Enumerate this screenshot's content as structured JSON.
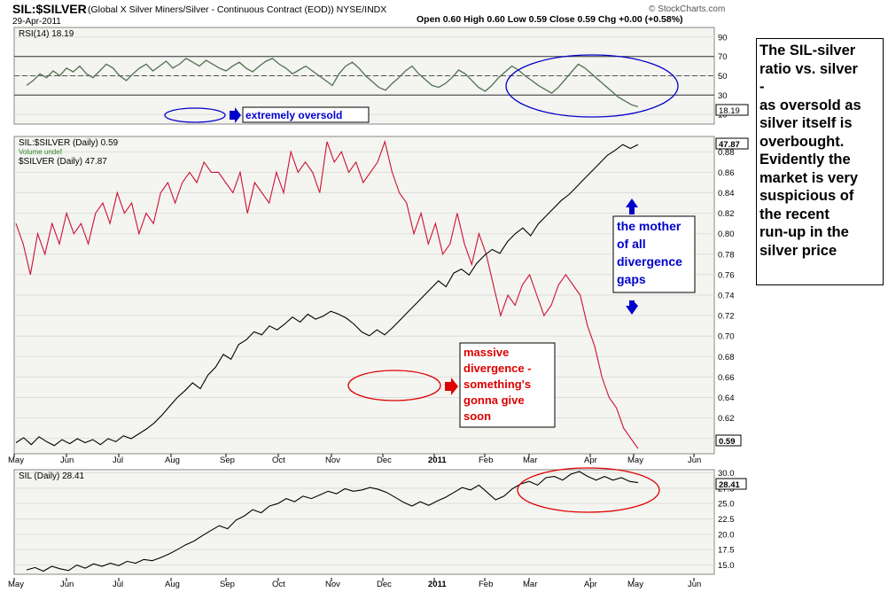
{
  "header": {
    "symbol": "SIL:$SILVER",
    "description": "(Global X Silver Miners/Silver - Continuous Contract (EOD)) NYSE/INDX",
    "date": "29-Apr-2011",
    "ohlc_label": "Open 0.60  High 0.60  Low 0.59  Close 0.59  Chg +0.00 (+0.58%)",
    "credit": "© StockCharts.com",
    "ohlc_arrow_color": "#00aa00"
  },
  "note": {
    "lines": [
      "The SIL-silver",
      "ratio vs. silver",
      "-",
      "as oversold as",
      "silver itself is",
      "overbought.",
      "Evidently the",
      "market  is very",
      "suspicious of",
      "the recent",
      "run-up in the",
      "silver price"
    ]
  },
  "annotations": {
    "oversold": "extremely oversold",
    "massive": [
      "massive",
      "divergence -",
      "something's",
      "gonna give",
      "soon"
    ],
    "mother": [
      "the mother",
      "of all",
      "divergence",
      "gaps"
    ]
  },
  "colors": {
    "panel_bg": "#f4f4f0",
    "ratio": "#cc1133",
    "silver": "#000000",
    "rsi": "#507050",
    "blue_annot": "#0000cc",
    "red_annot": "#dd0000",
    "price_label_bg": "#ffffff"
  },
  "chart_data": [
    {
      "type": "line",
      "panel": "rsi",
      "legend": "RSI(14) 18.19",
      "yticks": [
        10,
        30,
        50,
        70,
        90
      ],
      "ylim": [
        0,
        100
      ],
      "levels": [
        30,
        50,
        70
      ],
      "last_value": "18.19",
      "series": [
        {
          "name": "RSI(14)",
          "values": [
            40,
            45,
            52,
            48,
            55,
            50,
            58,
            54,
            60,
            52,
            48,
            55,
            62,
            58,
            50,
            45,
            52,
            58,
            62,
            55,
            60,
            65,
            58,
            62,
            68,
            64,
            60,
            66,
            62,
            58,
            55,
            60,
            64,
            58,
            54,
            60,
            65,
            68,
            62,
            58,
            52,
            56,
            60,
            55,
            50,
            45,
            40,
            52,
            60,
            64,
            58,
            50,
            44,
            38,
            35,
            42,
            48,
            55,
            60,
            52,
            46,
            40,
            38,
            42,
            48,
            56,
            52,
            45,
            38,
            34,
            40,
            48,
            54,
            60,
            56,
            50,
            45,
            40,
            36,
            32,
            38,
            46,
            54,
            62,
            58,
            52,
            46,
            40,
            34,
            28,
            24,
            20,
            18
          ]
        }
      ]
    },
    {
      "type": "line",
      "panel": "main",
      "legend": [
        "SIL:$SILVER (Daily) 0.59",
        "Volume undef",
        "$SILVER (Daily) 47.87"
      ],
      "xticks": [
        "May",
        "Jun",
        "Jul",
        "Aug",
        "Sep",
        "Oct",
        "Nov",
        "Dec",
        "2011",
        "Feb",
        "Mar",
        "Apr",
        "May",
        "Jun"
      ],
      "yticks": [
        "0.60",
        "0.62",
        "0.64",
        "0.66",
        "0.68",
        "0.70",
        "0.72",
        "0.74",
        "0.76",
        "0.78",
        "0.80",
        "0.82",
        "0.84",
        "0.86",
        "0.88"
      ],
      "ylim": [
        0.585,
        0.895
      ],
      "last_labels": {
        "ratio": "0.59",
        "silver": "47.87"
      },
      "series": [
        {
          "name": "SIL:$SILVER",
          "values": [
            0.81,
            0.79,
            0.76,
            0.8,
            0.78,
            0.81,
            0.79,
            0.82,
            0.8,
            0.81,
            0.79,
            0.82,
            0.83,
            0.81,
            0.84,
            0.82,
            0.83,
            0.8,
            0.82,
            0.81,
            0.84,
            0.85,
            0.83,
            0.85,
            0.86,
            0.85,
            0.87,
            0.86,
            0.86,
            0.85,
            0.84,
            0.86,
            0.82,
            0.85,
            0.84,
            0.83,
            0.86,
            0.84,
            0.88,
            0.86,
            0.87,
            0.86,
            0.84,
            0.89,
            0.87,
            0.88,
            0.86,
            0.87,
            0.85,
            0.86,
            0.87,
            0.89,
            0.86,
            0.84,
            0.83,
            0.8,
            0.82,
            0.79,
            0.81,
            0.78,
            0.79,
            0.82,
            0.79,
            0.77,
            0.8,
            0.78,
            0.75,
            0.72,
            0.74,
            0.73,
            0.75,
            0.76,
            0.74,
            0.72,
            0.73,
            0.75,
            0.76,
            0.75,
            0.74,
            0.71,
            0.69,
            0.66,
            0.64,
            0.63,
            0.61,
            0.6,
            0.59
          ]
        },
        {
          "name": "$SILVER",
          "values": [
            17.5,
            18.0,
            17.3,
            18.1,
            17.6,
            17.2,
            17.8,
            17.4,
            17.9,
            17.5,
            17.8,
            17.3,
            17.9,
            17.6,
            18.2,
            17.9,
            18.4,
            18.9,
            19.5,
            20.3,
            21.2,
            22.1,
            22.8,
            23.6,
            23.0,
            24.4,
            25.2,
            26.5,
            26.0,
            27.5,
            28.0,
            28.8,
            28.5,
            29.4,
            29.0,
            29.6,
            30.3,
            29.8,
            30.6,
            30.1,
            30.4,
            30.9,
            30.6,
            30.2,
            29.6,
            28.8,
            28.4,
            29.0,
            28.5,
            29.2,
            30.0,
            30.8,
            31.6,
            32.4,
            33.2,
            34.0,
            33.4,
            34.8,
            35.2,
            34.6,
            35.8,
            36.6,
            37.2,
            36.8,
            38.0,
            38.8,
            39.4,
            38.6,
            39.8,
            40.6,
            41.4,
            42.2,
            42.8,
            43.6,
            44.4,
            45.2,
            46.0,
            46.8,
            47.3,
            47.9,
            47.5,
            47.9
          ]
        }
      ]
    },
    {
      "type": "line",
      "panel": "sil",
      "legend": "SIL (Daily) 28.41",
      "xticks": [
        "May",
        "Jun",
        "Jul",
        "Aug",
        "Sep",
        "Oct",
        "Nov",
        "Dec",
        "2011",
        "Feb",
        "Mar",
        "Apr",
        "May",
        "Jun"
      ],
      "yticks": [
        "15.0",
        "17.5",
        "20.0",
        "22.5",
        "25.0",
        "27.5",
        "30.0"
      ],
      "ylim": [
        13.5,
        30.5
      ],
      "last_value": "28.41",
      "series": [
        {
          "name": "SIL",
          "values": [
            14.2,
            14.6,
            14.0,
            14.8,
            14.4,
            14.1,
            15.0,
            14.5,
            15.2,
            14.8,
            15.3,
            14.9,
            15.6,
            15.3,
            15.9,
            15.7,
            16.2,
            16.8,
            17.5,
            18.3,
            18.9,
            19.8,
            20.6,
            21.4,
            20.9,
            22.3,
            23.0,
            24.0,
            23.5,
            24.6,
            25.0,
            25.8,
            25.3,
            26.2,
            25.8,
            26.4,
            27.0,
            26.6,
            27.4,
            27.0,
            27.2,
            27.6,
            27.3,
            26.8,
            26.0,
            25.2,
            24.6,
            25.3,
            24.7,
            25.4,
            26.0,
            26.8,
            27.6,
            27.2,
            28.0,
            26.8,
            25.6,
            26.2,
            27.4,
            28.2,
            28.6,
            28.0,
            29.2,
            29.4,
            28.8,
            29.8,
            30.2,
            29.4,
            28.8,
            29.4,
            28.8,
            29.2,
            28.6,
            28.4
          ]
        }
      ]
    }
  ]
}
